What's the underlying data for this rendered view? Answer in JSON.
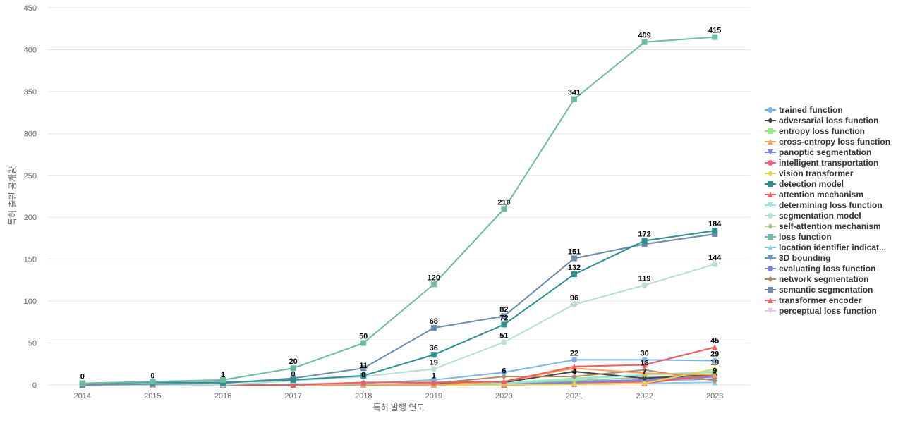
{
  "chart_data": {
    "type": "line",
    "title": "",
    "xlabel": "특허 발행 연도",
    "ylabel": "특허 출원 공개량",
    "x": [
      "2014",
      "2015",
      "2016",
      "2017",
      "2018",
      "2019",
      "2020",
      "2021",
      "2022",
      "2023"
    ],
    "yticks": [
      0,
      50,
      100,
      150,
      200,
      250,
      300,
      350,
      400,
      450
    ],
    "ylim": [
      0,
      450
    ],
    "grid": true,
    "legend_position": "right",
    "series": [
      {
        "name": "trained function",
        "color": "#7cb5ec",
        "marker": "circle",
        "values": [
          0,
          0,
          0,
          1,
          2,
          6,
          15,
          30,
          30,
          29
        ]
      },
      {
        "name": "adversarial loss function",
        "color": "#434348",
        "marker": "diamond",
        "values": [
          0,
          0,
          0,
          0,
          0,
          1,
          3,
          16,
          8,
          12
        ]
      },
      {
        "name": "entropy loss function",
        "color": "#90ed7d",
        "marker": "square",
        "values": [
          0,
          0,
          0,
          0,
          0,
          0,
          2,
          8,
          12,
          15
        ]
      },
      {
        "name": "cross-entropy loss function",
        "color": "#f7a35c",
        "marker": "triangle",
        "values": [
          0,
          0,
          0,
          0,
          0,
          0,
          4,
          20,
          14,
          12
        ]
      },
      {
        "name": "panoptic segmentation",
        "color": "#8085e9",
        "marker": "triangle-down",
        "values": [
          0,
          0,
          0,
          0,
          0,
          0,
          1,
          4,
          6,
          11
        ]
      },
      {
        "name": "intelligent transportation",
        "color": "#f15c80",
        "marker": "circle",
        "values": [
          0,
          0,
          0,
          0,
          0,
          0,
          0,
          2,
          4,
          10
        ]
      },
      {
        "name": "vision transformer",
        "color": "#e4d354",
        "marker": "diamond",
        "values": [
          0,
          0,
          0,
          0,
          0,
          0,
          0,
          1,
          2,
          19
        ]
      },
      {
        "name": "detection model",
        "color": "#2b908f",
        "marker": "square",
        "values": [
          2,
          3,
          3,
          6,
          11,
          36,
          72,
          132,
          172,
          184
        ]
      },
      {
        "name": "attention mechanism",
        "color": "#f45b5b",
        "marker": "triangle",
        "values": [
          0,
          0,
          0,
          0,
          3,
          3,
          4,
          22,
          24,
          45
        ]
      },
      {
        "name": "determining loss function",
        "color": "#91e8e1",
        "marker": "triangle-down",
        "values": [
          0,
          0,
          0,
          0,
          0,
          0,
          2,
          7,
          12,
          16
        ]
      },
      {
        "name": "segmentation model",
        "color": "#b8e0d2",
        "marker": "circle",
        "values": [
          0,
          0,
          0,
          5,
          10,
          19,
          51,
          96,
          119,
          144
        ]
      },
      {
        "name": "self-attention mechanism",
        "color": "#a2c78a",
        "marker": "diamond",
        "values": [
          0,
          0,
          0,
          0,
          0,
          1,
          2,
          5,
          9,
          13
        ]
      },
      {
        "name": "loss function",
        "color": "#6cbba3",
        "marker": "square",
        "values": [
          2,
          4,
          6,
          20,
          50,
          120,
          210,
          341,
          409,
          415
        ]
      },
      {
        "name": "location identifier indicat...",
        "color": "#87ceeb",
        "marker": "triangle",
        "values": [
          0,
          0,
          0,
          0,
          0,
          0,
          0,
          1,
          2,
          3
        ]
      },
      {
        "name": "3D bounding",
        "color": "#5b9bd5",
        "marker": "triangle-down",
        "values": [
          0,
          0,
          0,
          0,
          0,
          0,
          0,
          2,
          5,
          7
        ]
      },
      {
        "name": "evaluating loss function",
        "color": "#7c80d8",
        "marker": "circle",
        "values": [
          0,
          0,
          0,
          0,
          0,
          0,
          1,
          3,
          6,
          10
        ]
      },
      {
        "name": "network segmentation",
        "color": "#b08968",
        "marker": "diamond",
        "values": [
          0,
          0,
          0,
          0,
          0,
          2,
          10,
          10,
          18,
          5
        ]
      },
      {
        "name": "semantic segmentation",
        "color": "#6a8caf",
        "marker": "square",
        "values": [
          0,
          1,
          2,
          8,
          20,
          68,
          82,
          151,
          168,
          180
        ]
      },
      {
        "name": "transformer encoder",
        "color": "#f06060",
        "marker": "triangle",
        "values": [
          0,
          0,
          0,
          0,
          0,
          0,
          0,
          1,
          2,
          12
        ]
      },
      {
        "name": "perceptual loss function",
        "color": "#e6c6e6",
        "marker": "triangle-down",
        "values": [
          0,
          0,
          0,
          0,
          0,
          0,
          0,
          2,
          4,
          9
        ]
      }
    ],
    "data_labels": [
      {
        "x": "2014",
        "y": 2,
        "text": "0"
      },
      {
        "x": "2015",
        "y": 3,
        "text": "0"
      },
      {
        "x": "2016",
        "y": 4,
        "text": "1"
      },
      {
        "x": "2017",
        "y": 20,
        "text": "20"
      },
      {
        "x": "2017",
        "y": 5,
        "text": "0"
      },
      {
        "x": "2018",
        "y": 50,
        "text": "50"
      },
      {
        "x": "2018",
        "y": 15,
        "text": "11"
      },
      {
        "x": "2018",
        "y": 4,
        "text": "0"
      },
      {
        "x": "2019",
        "y": 120,
        "text": "120"
      },
      {
        "x": "2019",
        "y": 68,
        "text": "68"
      },
      {
        "x": "2019",
        "y": 36,
        "text": "36"
      },
      {
        "x": "2019",
        "y": 19,
        "text": "19"
      },
      {
        "x": "2019",
        "y": 3,
        "text": "1"
      },
      {
        "x": "2020",
        "y": 210,
        "text": "210"
      },
      {
        "x": "2020",
        "y": 82,
        "text": "82"
      },
      {
        "x": "2020",
        "y": 72,
        "text": "72"
      },
      {
        "x": "2020",
        "y": 51,
        "text": "51"
      },
      {
        "x": "2020",
        "y": 9,
        "text": "6"
      },
      {
        "x": "2021",
        "y": 341,
        "text": "341"
      },
      {
        "x": "2021",
        "y": 151,
        "text": "151"
      },
      {
        "x": "2021",
        "y": 132,
        "text": "132"
      },
      {
        "x": "2021",
        "y": 96,
        "text": "96"
      },
      {
        "x": "2021",
        "y": 30,
        "text": "22"
      },
      {
        "x": "2021",
        "y": 8,
        "text": "4"
      },
      {
        "x": "2022",
        "y": 409,
        "text": "409"
      },
      {
        "x": "2022",
        "y": 172,
        "text": "172"
      },
      {
        "x": "2022",
        "y": 119,
        "text": "119"
      },
      {
        "x": "2022",
        "y": 30,
        "text": "30"
      },
      {
        "x": "2022",
        "y": 18,
        "text": "18"
      },
      {
        "x": "2022",
        "y": 8,
        "text": "7"
      },
      {
        "x": "2023",
        "y": 415,
        "text": "415"
      },
      {
        "x": "2023",
        "y": 184,
        "text": "184"
      },
      {
        "x": "2023",
        "y": 144,
        "text": "144"
      },
      {
        "x": "2023",
        "y": 45,
        "text": "45"
      },
      {
        "x": "2023",
        "y": 29,
        "text": "29"
      },
      {
        "x": "2023",
        "y": 19,
        "text": "19"
      },
      {
        "x": "2023",
        "y": 9,
        "text": "9"
      }
    ]
  }
}
